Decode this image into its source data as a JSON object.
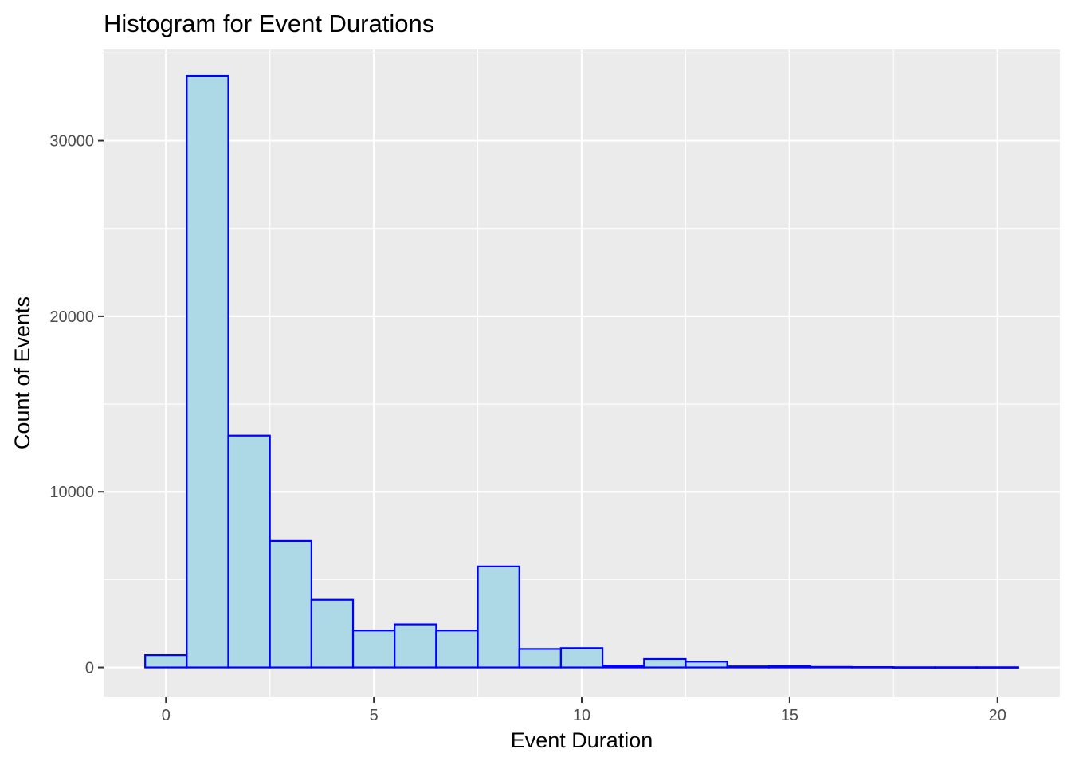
{
  "chart_data": {
    "type": "bar",
    "title": "Histogram for Event Durations",
    "xlabel": "Event Duration",
    "ylabel": "Count of Events",
    "x_bin_centers": [
      0,
      1,
      2,
      3,
      4,
      5,
      6,
      7,
      8,
      9,
      10,
      11,
      12,
      13,
      14,
      15,
      16,
      17,
      18,
      19,
      20
    ],
    "bin_width": 1,
    "values": [
      700,
      33700,
      13200,
      7200,
      3850,
      2100,
      2450,
      2100,
      5750,
      1050,
      1100,
      100,
      480,
      330,
      60,
      80,
      30,
      20,
      10,
      10,
      10
    ],
    "xlim": [
      -1.5,
      21.5
    ],
    "ylim": [
      -1700,
      35200
    ],
    "x_ticks": [
      0,
      5,
      10,
      15,
      20
    ],
    "y_ticks": [
      0,
      10000,
      20000,
      30000
    ],
    "x_tick_labels": [
      "0",
      "5",
      "10",
      "15",
      "20"
    ],
    "y_tick_labels": [
      "0",
      "10000",
      "20000",
      "30000"
    ],
    "fill_color": "#add8e6",
    "outline_color": "#0000ff",
    "panel_background": "#ebebeb",
    "grid": true,
    "legend": "none"
  }
}
